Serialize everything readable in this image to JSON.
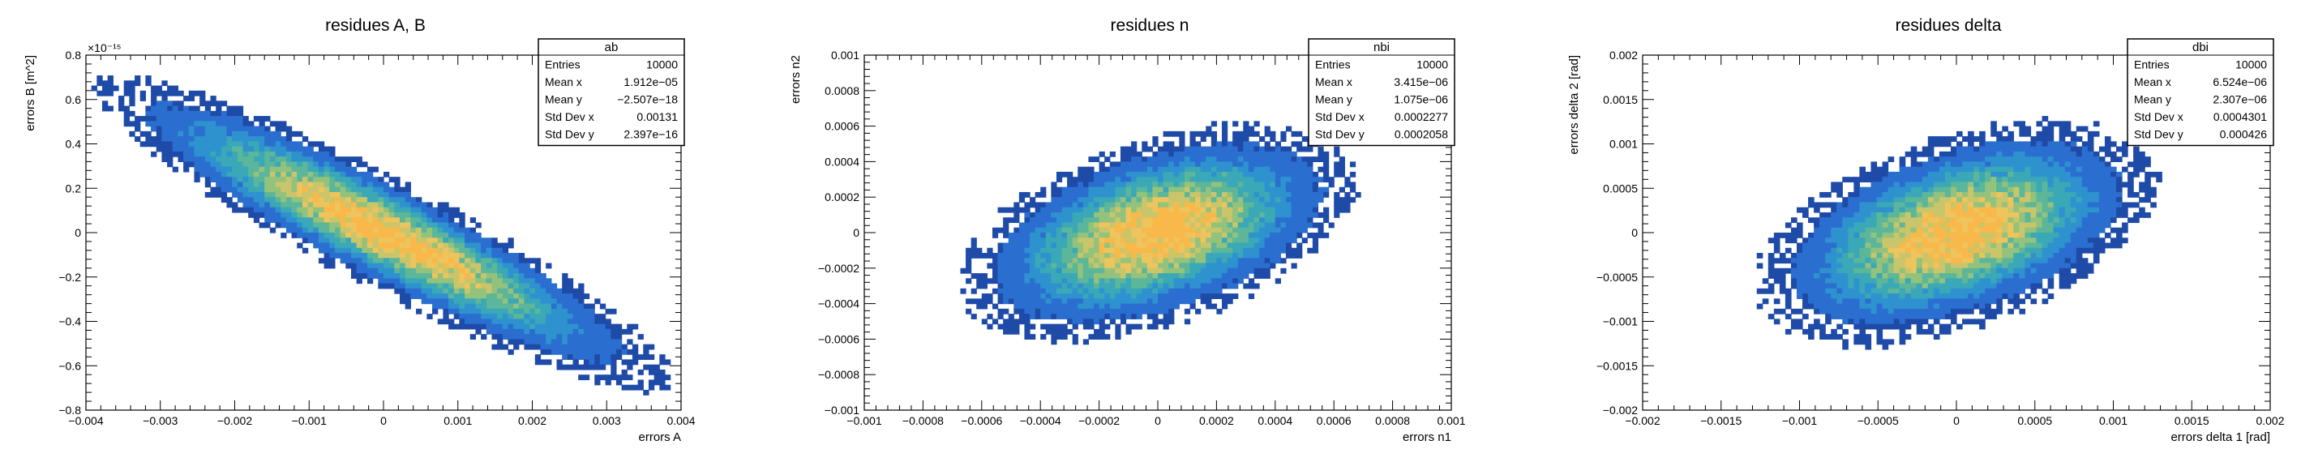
{
  "chart_data": [
    {
      "type": "heatmap",
      "title": "residues A, B",
      "xlabel": "errors A",
      "ylabel": "errors B [m^2]",
      "xlim": [
        -0.004,
        0.004
      ],
      "ylim": [
        -0.8,
        0.8
      ],
      "exponent_label": "×10⁻¹⁵",
      "x_ticks": [
        "−0.004",
        "−0.003",
        "−0.002",
        "−0.001",
        "0",
        "0.001",
        "0.002",
        "0.003",
        "0.004"
      ],
      "y_ticks": [
        "−0.8",
        "−0.6",
        "−0.4",
        "−0.2",
        "0",
        "0.2",
        "0.4",
        "0.6",
        "0.8"
      ],
      "distribution": {
        "center": [
          0.0,
          0.0
        ],
        "sigma_x": 0.00131,
        "sigma_y": 0.2397,
        "correlation": -0.92
      },
      "stats": {
        "name": "ab",
        "rows": [
          [
            "Entries",
            "10000"
          ],
          [
            "Mean x",
            "1.912e−05"
          ],
          [
            "Mean y",
            "−2.507e−18"
          ],
          [
            "Std Dev x",
            "0.00131"
          ],
          [
            "Std Dev y",
            "2.397e−16"
          ]
        ]
      }
    },
    {
      "type": "heatmap",
      "title": "residues n",
      "xlabel": "errors n1",
      "ylabel": "errors n2",
      "xlim": [
        -0.001,
        0.001
      ],
      "ylim": [
        -0.001,
        0.001
      ],
      "exponent_label": "",
      "x_ticks": [
        "−0.001",
        "−0.0008",
        "−0.0006",
        "−0.0004",
        "−0.0002",
        "0",
        "0.0002",
        "0.0004",
        "0.0006",
        "0.0008",
        "0.001"
      ],
      "y_ticks": [
        "−0.001",
        "−0.0008",
        "−0.0006",
        "−0.0004",
        "−0.0002",
        "0",
        "0.0002",
        "0.0004",
        "0.0006",
        "0.0008",
        "0.001"
      ],
      "distribution": {
        "center": [
          0.0,
          0.0
        ],
        "sigma_x": 0.0002277,
        "sigma_y": 0.0002058,
        "correlation": 0.45
      },
      "stats": {
        "name": "nbi",
        "rows": [
          [
            "Entries",
            "10000"
          ],
          [
            "Mean x",
            "3.415e−06"
          ],
          [
            "Mean y",
            "1.075e−06"
          ],
          [
            "Std Dev x",
            "0.0002277"
          ],
          [
            "Std Dev y",
            "0.0002058"
          ]
        ]
      }
    },
    {
      "type": "heatmap",
      "title": "residues delta",
      "xlabel": "errors delta 1 [rad]",
      "ylabel": "errors delta 2 [rad]",
      "xlim": [
        -0.002,
        0.002
      ],
      "ylim": [
        -0.002,
        0.002
      ],
      "exponent_label": "",
      "x_ticks": [
        "−0.002",
        "−0.0015",
        "−0.001",
        "−0.0005",
        "0",
        "0.0005",
        "0.001",
        "0.0015",
        "0.002"
      ],
      "y_ticks": [
        "−0.002",
        "−0.0015",
        "−0.001",
        "−0.0005",
        "0",
        "0.0005",
        "0.001",
        "0.0015",
        "0.002"
      ],
      "distribution": {
        "center": [
          0.0,
          0.0
        ],
        "sigma_x": 0.0004301,
        "sigma_y": 0.000426,
        "correlation": 0.45
      },
      "stats": {
        "name": "dbi",
        "rows": [
          [
            "Entries",
            "10000"
          ],
          [
            "Mean x",
            "6.524e−06"
          ],
          [
            "Mean y",
            "2.307e−06"
          ],
          [
            "Std Dev x",
            "0.0004301"
          ],
          [
            "Std Dev y",
            "0.000426"
          ]
        ]
      }
    }
  ],
  "colors": {
    "axis": "#000000",
    "palette": [
      "#1f4ba8",
      "#2a6fd0",
      "#2e92cf",
      "#3aa8b6",
      "#5bb69a",
      "#93c27c",
      "#c9c56a",
      "#eec45c",
      "#f9b84a"
    ]
  }
}
